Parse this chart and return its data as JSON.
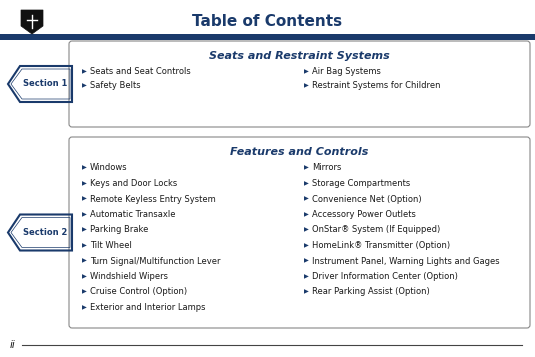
{
  "title": "Table of Contents",
  "title_color": "#1a3a6b",
  "title_fontsize": 11,
  "header_bar_color": "#1a3a6b",
  "bg_color": "#ffffff",
  "section1_title": "Seats and Restraint Systems",
  "section1_left": [
    "Seats and Seat Controls",
    "Safety Belts"
  ],
  "section1_right": [
    "Air Bag Systems",
    "Restraint Systems for Children"
  ],
  "section2_title": "Features and Controls",
  "section2_left": [
    "Windows",
    "Keys and Door Locks",
    "Remote Keyless Entry System",
    "Automatic Transaxle",
    "Parking Brake",
    "Tilt Wheel",
    "Turn Signal/Multifunction Lever",
    "Windshield Wipers",
    "Cruise Control (Option)",
    "Exterior and Interior Lamps"
  ],
  "section2_right": [
    "Mirrors",
    "Storage Compartments",
    "Convenience Net (Option)",
    "Accessory Power Outlets",
    "OnStar® System (If Equipped)",
    "HomeLink® Transmitter (Option)",
    "Instrument Panel, Warning Lights and Gages",
    "Driver Information Center (Option)",
    "Rear Parking Assist (Option)"
  ],
  "text_color": "#1a1a1a",
  "section_title_color": "#1a3a6b",
  "footer_text": "ii",
  "bullet_color": "#1a3a6b",
  "box_border_color": "#888888",
  "section_label_color": "#1a3a6b",
  "item_fontsize": 6.0,
  "section_title_fontsize": 8.0
}
